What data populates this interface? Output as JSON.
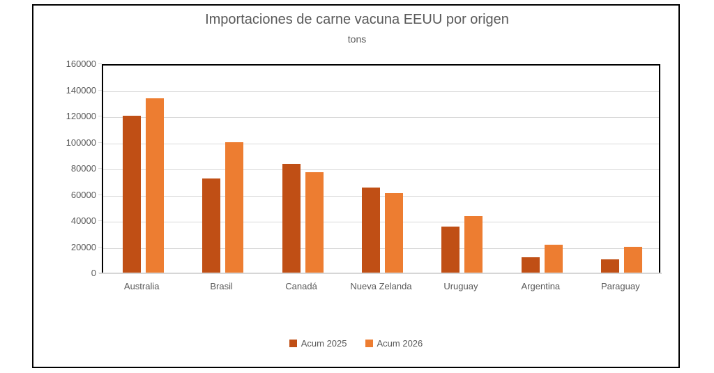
{
  "chart": {
    "title": "Importaciones de carne vacuna EEUU por origen",
    "subtitle": "tons"
  },
  "chart_data": {
    "type": "bar",
    "title": "Importaciones de carne vacuna EEUU por origen",
    "subtitle": "tons",
    "xlabel": "",
    "ylabel": "tons",
    "categories": [
      "Australia",
      "Brasil",
      "Canadá",
      "Nueva Zelanda",
      "Uruguay",
      "Argentina",
      "Paraguay"
    ],
    "series": [
      {
        "name": "Acum 2025",
        "color": "#c04f15",
        "values": [
          120000,
          72000,
          83000,
          65000,
          35000,
          12000,
          10000
        ]
      },
      {
        "name": "Acum 2026",
        "color": "#ed7d31",
        "values": [
          133500,
          99500,
          77000,
          61000,
          43000,
          21500,
          20000
        ]
      }
    ],
    "ylim": [
      0,
      160000
    ],
    "ytick_step": 20000,
    "grid": true,
    "legend_position": "bottom"
  },
  "colors": {
    "series_dark": "#c04f15",
    "series_light": "#ed7d31",
    "text_gray": "#595959",
    "gridline": "#d9d9d9",
    "frame_border": "#000000"
  }
}
